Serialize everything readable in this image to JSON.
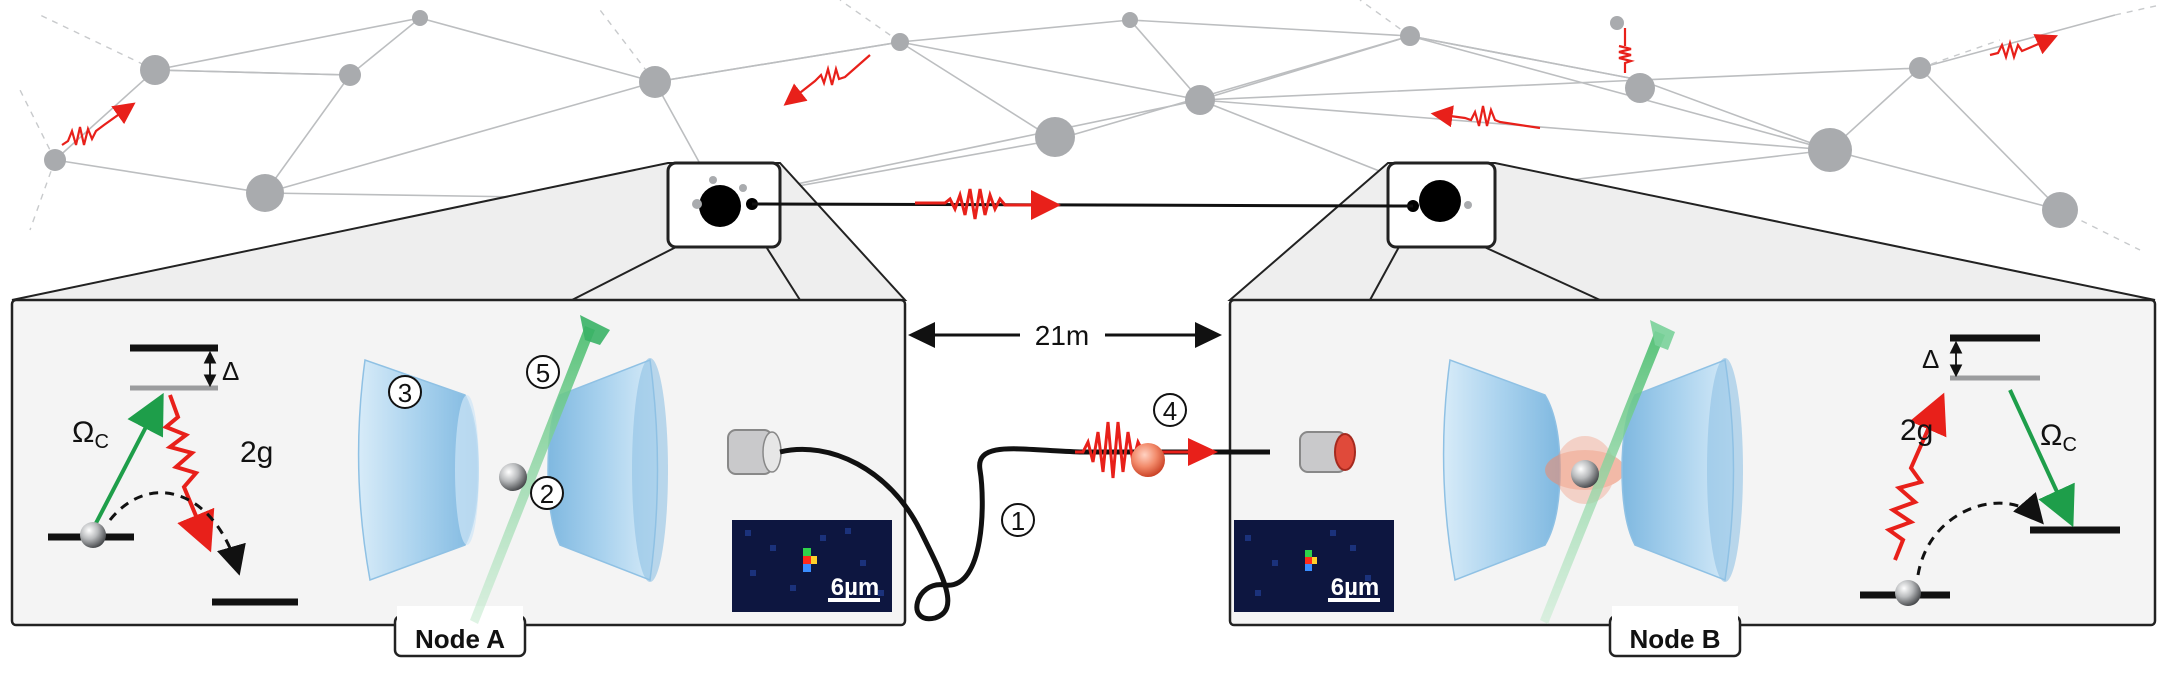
{
  "nodes": {
    "a": {
      "label": "Node A",
      "scale_bar": "6µm"
    },
    "b": {
      "label": "Node B",
      "scale_bar": "6µm"
    }
  },
  "distance_label": "21m",
  "level_scheme": {
    "detuning": "Δ",
    "control": "Ω",
    "control_sub": "C",
    "coupling": "2g"
  },
  "markers": [
    "1",
    "2",
    "3",
    "4",
    "5"
  ],
  "colors": {
    "photon": "#e8201a",
    "control_beam": "#1e9e4a",
    "network_node": "#a9abae",
    "network_line": "#b9bbbd",
    "mirror": "#a9d2ee",
    "panel_bg": "#f4f4f4",
    "fiber": "#111111",
    "camera_bg": "#0d1640"
  },
  "icons": [
    "atom-icon",
    "photon-wavepacket-icon",
    "fiber-coupler-icon",
    "double-arrow-icon"
  ]
}
